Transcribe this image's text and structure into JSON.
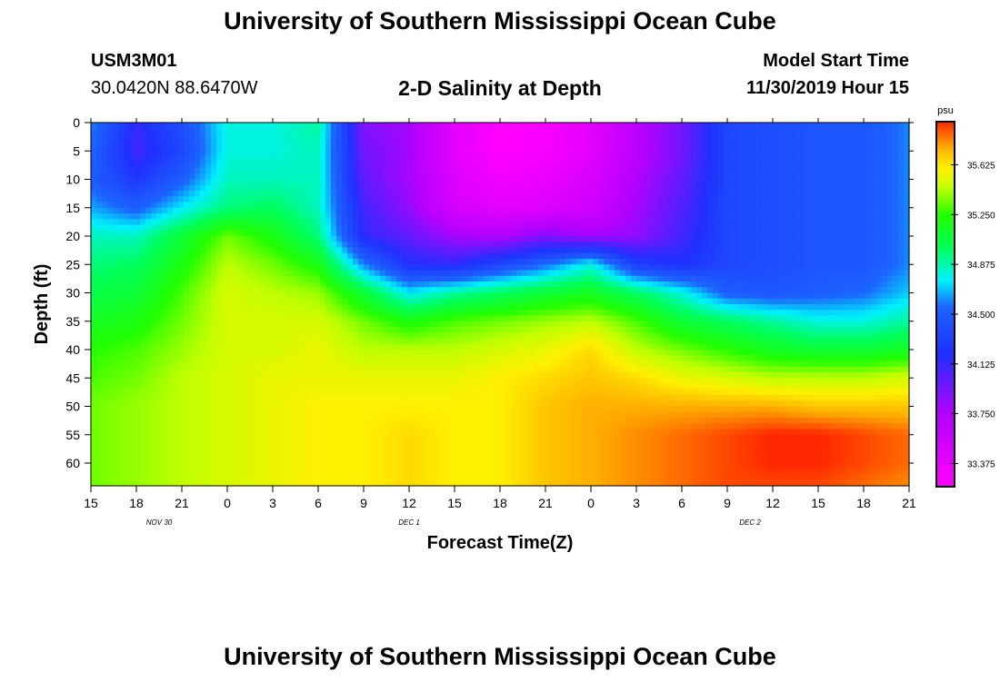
{
  "header": {
    "title": "University of Southern Mississippi Ocean Cube",
    "station": "USM3M01",
    "coords": "30.0420N 88.6470W",
    "subtitle": "2-D Salinity at Depth",
    "start_label": "Model Start Time",
    "start_time": "11/30/2019 Hour 15"
  },
  "footer": {
    "title": "University of Southern Mississippi Ocean Cube"
  },
  "chart_data": {
    "type": "heatmap",
    "title": "2-D Salinity at Depth",
    "xlabel": "Forecast Time(Z)",
    "ylabel": "Depth (ft)",
    "x_ticks": [
      "15",
      "18",
      "21",
      "0",
      "3",
      "6",
      "9",
      "12",
      "15",
      "18",
      "21",
      "0",
      "3",
      "6",
      "9",
      "12",
      "15",
      "18",
      "21"
    ],
    "x_range_hours": [
      0,
      54
    ],
    "date_labels": [
      {
        "label": "NOV 30",
        "hour": 4.5
      },
      {
        "label": "DEC 1",
        "hour": 21
      },
      {
        "label": "DEC 2",
        "hour": 43.5
      }
    ],
    "y_ticks": [
      0,
      5,
      10,
      15,
      20,
      25,
      30,
      35,
      40,
      45,
      50,
      55,
      60
    ],
    "y_range_ft": [
      0,
      64
    ],
    "colorbar": {
      "unit": "psu",
      "tick_labels": [
        "35.625",
        "35.250",
        "34.875",
        "34.500",
        "34.125",
        "33.750",
        "33.375"
      ],
      "range": [
        33.2,
        35.95
      ]
    },
    "color_stops": [
      {
        "v": 33.2,
        "c": "#ff00ff"
      },
      {
        "v": 33.75,
        "c": "#b400ff"
      },
      {
        "v": 34.2,
        "c": "#2030ff"
      },
      {
        "v": 34.55,
        "c": "#1c64ff"
      },
      {
        "v": 34.75,
        "c": "#00f0ff"
      },
      {
        "v": 35.0,
        "c": "#00ff5a"
      },
      {
        "v": 35.25,
        "c": "#22ff00"
      },
      {
        "v": 35.45,
        "c": "#c0ff00"
      },
      {
        "v": 35.6,
        "c": "#fff000"
      },
      {
        "v": 35.75,
        "c": "#ffb000"
      },
      {
        "v": 35.95,
        "c": "#ff2500"
      }
    ],
    "columns_hours": [
      0,
      3,
      6,
      9,
      12,
      15,
      18,
      21,
      24,
      27,
      30,
      33,
      36,
      39,
      42,
      45,
      48,
      51,
      54
    ],
    "row_depths_ft": [
      0,
      5,
      10,
      15,
      20,
      25,
      30,
      35,
      40,
      45,
      50,
      55,
      60,
      64
    ],
    "salinity_psu": [
      [
        34.6,
        34.15,
        34.4,
        34.8,
        34.8,
        34.9,
        33.9,
        33.8,
        33.4,
        33.2,
        33.25,
        33.4,
        33.7,
        33.95,
        34.35,
        34.4,
        34.45,
        34.45,
        34.6
      ],
      [
        34.55,
        34.1,
        34.35,
        34.8,
        34.8,
        34.85,
        33.95,
        33.8,
        33.4,
        33.2,
        33.25,
        33.4,
        33.7,
        33.95,
        34.35,
        34.4,
        34.45,
        34.45,
        34.6
      ],
      [
        34.5,
        34.25,
        34.5,
        34.85,
        34.85,
        34.85,
        34.0,
        33.8,
        33.45,
        33.3,
        33.35,
        33.5,
        33.75,
        34.0,
        34.35,
        34.4,
        34.45,
        34.45,
        34.6
      ],
      [
        34.65,
        34.5,
        34.75,
        34.95,
        35.0,
        34.85,
        34.1,
        33.85,
        33.5,
        33.4,
        33.45,
        33.55,
        33.8,
        34.05,
        34.35,
        34.4,
        34.45,
        34.45,
        34.6
      ],
      [
        34.85,
        34.85,
        35.1,
        35.35,
        35.2,
        34.95,
        34.15,
        34.0,
        33.8,
        33.75,
        33.9,
        33.8,
        33.85,
        34.1,
        34.35,
        34.4,
        34.45,
        34.45,
        34.6
      ],
      [
        34.95,
        35.0,
        35.2,
        35.45,
        35.35,
        35.2,
        34.6,
        34.2,
        34.15,
        34.35,
        34.55,
        34.8,
        34.3,
        34.2,
        34.35,
        34.4,
        34.45,
        34.45,
        34.6
      ],
      [
        35.05,
        35.1,
        35.3,
        35.5,
        35.45,
        35.4,
        35.1,
        34.75,
        34.9,
        35.0,
        35.1,
        35.15,
        35.0,
        34.8,
        34.5,
        34.45,
        34.5,
        34.55,
        34.7
      ],
      [
        35.15,
        35.2,
        35.35,
        35.5,
        35.5,
        35.5,
        35.35,
        35.2,
        35.3,
        35.35,
        35.4,
        35.45,
        35.3,
        35.1,
        35.0,
        34.9,
        34.8,
        34.8,
        34.9
      ],
      [
        35.25,
        35.3,
        35.4,
        35.5,
        35.5,
        35.55,
        35.45,
        35.45,
        35.45,
        35.5,
        35.55,
        35.65,
        35.45,
        35.35,
        35.25,
        35.15,
        35.1,
        35.1,
        35.15
      ],
      [
        35.3,
        35.35,
        35.45,
        35.5,
        35.55,
        35.55,
        35.55,
        35.55,
        35.55,
        35.6,
        35.65,
        35.7,
        35.65,
        35.55,
        35.5,
        35.45,
        35.45,
        35.45,
        35.5
      ],
      [
        35.35,
        35.4,
        35.45,
        35.5,
        35.55,
        35.6,
        35.6,
        35.6,
        35.6,
        35.6,
        35.7,
        35.75,
        35.75,
        35.75,
        35.75,
        35.75,
        35.7,
        35.7,
        35.7
      ],
      [
        35.35,
        35.4,
        35.45,
        35.5,
        35.55,
        35.6,
        35.6,
        35.65,
        35.6,
        35.6,
        35.7,
        35.75,
        35.8,
        35.85,
        35.9,
        35.95,
        35.95,
        35.9,
        35.85
      ],
      [
        35.35,
        35.4,
        35.45,
        35.5,
        35.55,
        35.6,
        35.6,
        35.65,
        35.6,
        35.6,
        35.7,
        35.75,
        35.8,
        35.85,
        35.9,
        35.95,
        35.95,
        35.9,
        35.85
      ],
      [
        35.35,
        35.4,
        35.45,
        35.5,
        35.55,
        35.6,
        35.6,
        35.65,
        35.6,
        35.6,
        35.7,
        35.75,
        35.8,
        35.85,
        35.9,
        35.9,
        35.9,
        35.85,
        35.8
      ]
    ]
  }
}
